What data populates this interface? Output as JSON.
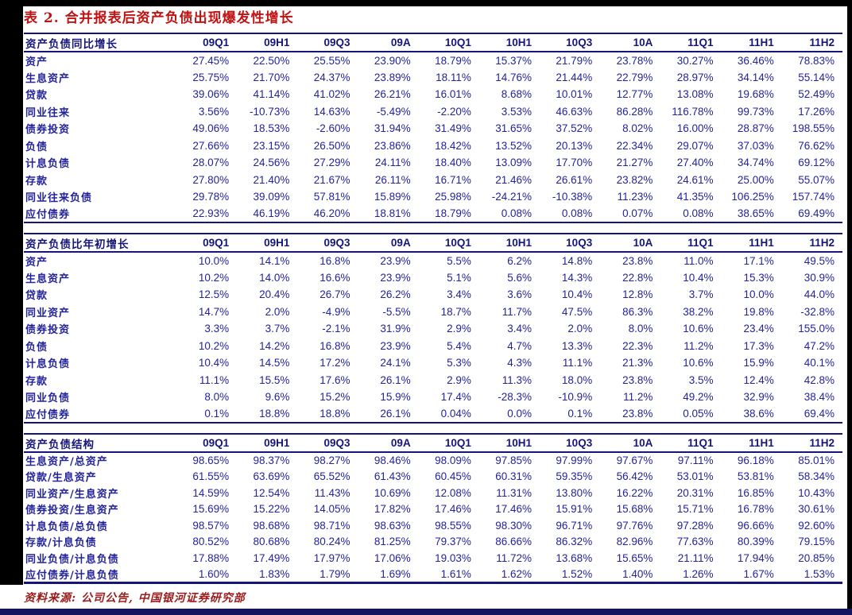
{
  "page": {
    "title": "表 2. 合并报表后资产负债出现爆发性增长",
    "source_note": "资料来源: 公司公告, 中国银河证券研究部"
  },
  "colors": {
    "title_red": "#c01212",
    "table_text_navy": "#23239b",
    "header_navy": "#16167a",
    "source_red": "#9b1b1b",
    "frame_black": "#000000",
    "bottom_bar_navy": "#14145f"
  },
  "columns": [
    "09Q1",
    "09H1",
    "09Q3",
    "09A",
    "10Q1",
    "10H1",
    "10Q3",
    "10A",
    "11Q1",
    "11H1",
    "11H2"
  ],
  "tables": [
    {
      "title": "资产负债同比增长",
      "rows": [
        {
          "label": "资产",
          "values": [
            "27.45%",
            "22.50%",
            "25.55%",
            "23.90%",
            "18.79%",
            "15.37%",
            "21.79%",
            "23.78%",
            "30.27%",
            "36.46%",
            "78.83%"
          ]
        },
        {
          "label": "生息资产",
          "values": [
            "25.75%",
            "21.70%",
            "24.37%",
            "23.89%",
            "18.11%",
            "14.76%",
            "21.44%",
            "22.79%",
            "28.97%",
            "34.14%",
            "55.14%"
          ]
        },
        {
          "label": "贷款",
          "values": [
            "39.06%",
            "41.14%",
            "41.02%",
            "26.21%",
            "16.01%",
            "8.68%",
            "10.01%",
            "12.77%",
            "13.08%",
            "19.68%",
            "52.49%"
          ]
        },
        {
          "label": "同业往来",
          "values": [
            "3.56%",
            "-10.73%",
            "14.63%",
            "-5.49%",
            "-2.20%",
            "3.53%",
            "46.63%",
            "86.28%",
            "116.78%",
            "99.73%",
            "17.26%"
          ]
        },
        {
          "label": "债券投资",
          "values": [
            "49.06%",
            "18.53%",
            "-2.60%",
            "31.94%",
            "31.49%",
            "31.65%",
            "37.52%",
            "8.02%",
            "16.00%",
            "28.87%",
            "198.55%"
          ]
        },
        {
          "label": "负债",
          "values": [
            "27.66%",
            "23.15%",
            "26.50%",
            "23.86%",
            "18.42%",
            "13.52%",
            "20.13%",
            "22.34%",
            "29.07%",
            "37.03%",
            "76.62%"
          ]
        },
        {
          "label": "计息负债",
          "values": [
            "28.07%",
            "24.56%",
            "27.29%",
            "24.11%",
            "18.40%",
            "13.09%",
            "17.70%",
            "21.27%",
            "27.40%",
            "34.74%",
            "69.12%"
          ]
        },
        {
          "label": "存款",
          "values": [
            "27.80%",
            "21.40%",
            "21.67%",
            "26.11%",
            "16.71%",
            "21.46%",
            "26.61%",
            "23.82%",
            "24.61%",
            "25.00%",
            "55.07%"
          ]
        },
        {
          "label": "同业往来负债",
          "values": [
            "29.78%",
            "39.09%",
            "57.81%",
            "15.89%",
            "25.98%",
            "-24.21%",
            "-10.38%",
            "11.23%",
            "41.35%",
            "106.25%",
            "157.74%"
          ]
        },
        {
          "label": "应付债券",
          "values": [
            "22.93%",
            "46.19%",
            "46.20%",
            "18.81%",
            "18.79%",
            "0.08%",
            "0.08%",
            "0.07%",
            "0.08%",
            "38.65%",
            "69.49%"
          ]
        }
      ]
    },
    {
      "title": "资产负债比年初增长",
      "rows": [
        {
          "label": "资产",
          "values": [
            "10.0%",
            "14.1%",
            "16.8%",
            "23.9%",
            "5.5%",
            "6.2%",
            "14.8%",
            "23.8%",
            "11.0%",
            "17.1%",
            "49.5%"
          ]
        },
        {
          "label": "生息资产",
          "values": [
            "10.2%",
            "14.0%",
            "16.6%",
            "23.9%",
            "5.1%",
            "5.6%",
            "14.3%",
            "22.8%",
            "10.4%",
            "15.3%",
            "30.9%"
          ]
        },
        {
          "label": "贷款",
          "values": [
            "12.5%",
            "20.4%",
            "26.7%",
            "26.2%",
            "3.4%",
            "3.6%",
            "10.4%",
            "12.8%",
            "3.7%",
            "10.0%",
            "44.0%"
          ]
        },
        {
          "label": "同业资产",
          "values": [
            "14.7%",
            "2.0%",
            "-4.9%",
            "-5.5%",
            "18.7%",
            "11.7%",
            "47.5%",
            "86.3%",
            "38.2%",
            "19.8%",
            "-32.8%"
          ]
        },
        {
          "label": "债券投资",
          "values": [
            "3.3%",
            "3.7%",
            "-2.1%",
            "31.9%",
            "2.9%",
            "3.4%",
            "2.0%",
            "8.0%",
            "10.6%",
            "23.4%",
            "155.0%"
          ]
        },
        {
          "label": "负债",
          "values": [
            "10.2%",
            "14.2%",
            "16.8%",
            "23.9%",
            "5.4%",
            "4.7%",
            "13.3%",
            "22.3%",
            "11.2%",
            "17.3%",
            "47.2%"
          ]
        },
        {
          "label": "计息负债",
          "values": [
            "10.4%",
            "14.5%",
            "17.2%",
            "24.1%",
            "5.3%",
            "4.3%",
            "11.1%",
            "21.3%",
            "10.6%",
            "15.9%",
            "40.1%"
          ]
        },
        {
          "label": "存款",
          "values": [
            "11.1%",
            "15.5%",
            "17.6%",
            "26.1%",
            "2.9%",
            "11.3%",
            "18.0%",
            "23.8%",
            "3.5%",
            "12.4%",
            "42.8%"
          ]
        },
        {
          "label": "同业负债",
          "values": [
            "8.0%",
            "9.6%",
            "15.2%",
            "15.9%",
            "17.4%",
            "-28.3%",
            "-10.9%",
            "11.2%",
            "49.2%",
            "32.9%",
            "38.4%"
          ]
        },
        {
          "label": "应付债券",
          "values": [
            "0.1%",
            "18.8%",
            "18.8%",
            "26.1%",
            "0.04%",
            "0.0%",
            "0.1%",
            "23.8%",
            "0.05%",
            "38.6%",
            "69.4%"
          ]
        }
      ]
    },
    {
      "title": "资产负债结构",
      "rows": [
        {
          "label": "生息资产/总资产",
          "values": [
            "98.65%",
            "98.37%",
            "98.27%",
            "98.46%",
            "98.09%",
            "97.85%",
            "97.99%",
            "97.67%",
            "97.11%",
            "96.18%",
            "85.01%"
          ]
        },
        {
          "label": "贷款/生息资产",
          "values": [
            "61.55%",
            "63.69%",
            "65.52%",
            "61.43%",
            "60.45%",
            "60.31%",
            "59.35%",
            "56.42%",
            "53.01%",
            "53.81%",
            "58.34%"
          ]
        },
        {
          "label": "同业资产/生息资产",
          "values": [
            "14.59%",
            "12.54%",
            "11.43%",
            "10.69%",
            "12.08%",
            "11.31%",
            "13.80%",
            "16.22%",
            "20.31%",
            "16.85%",
            "10.43%"
          ]
        },
        {
          "label": "债券投资/生息资产",
          "values": [
            "15.69%",
            "15.22%",
            "14.05%",
            "17.82%",
            "17.46%",
            "17.46%",
            "15.91%",
            "15.68%",
            "15.71%",
            "16.78%",
            "30.61%"
          ]
        },
        {
          "label": "计息负债/总负债",
          "values": [
            "98.57%",
            "98.68%",
            "98.71%",
            "98.63%",
            "98.55%",
            "98.30%",
            "96.71%",
            "97.76%",
            "97.28%",
            "96.66%",
            "92.60%"
          ]
        },
        {
          "label": "存款/计息负债",
          "values": [
            "80.52%",
            "80.68%",
            "80.24%",
            "81.25%",
            "79.37%",
            "86.66%",
            "86.32%",
            "82.96%",
            "77.63%",
            "80.39%",
            "79.15%"
          ]
        },
        {
          "label": "同业负债/计息负债",
          "values": [
            "17.88%",
            "17.49%",
            "17.97%",
            "17.06%",
            "19.03%",
            "11.72%",
            "13.68%",
            "15.65%",
            "21.11%",
            "17.94%",
            "20.85%"
          ]
        },
        {
          "label": "应付债券/计息负债",
          "values": [
            "1.60%",
            "1.83%",
            "1.79%",
            "1.69%",
            "1.61%",
            "1.62%",
            "1.52%",
            "1.40%",
            "1.26%",
            "1.67%",
            "1.53%"
          ]
        }
      ]
    }
  ]
}
